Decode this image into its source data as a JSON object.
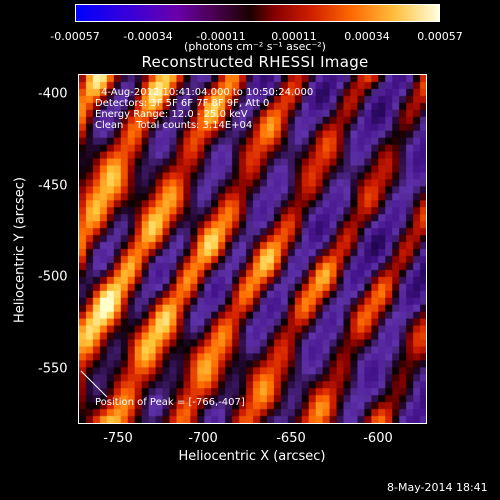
{
  "colorbar": {
    "ticks": [
      "-0.00057",
      "-0.00034",
      "-0.00011",
      "0.00011",
      "0.00034",
      "0.00057"
    ],
    "unit_label": "(photons cm⁻² s⁻¹ asec⁻²)",
    "colormap_colors": [
      "#0000ff",
      "#6a00a8",
      "#1a0000",
      "#d02000",
      "#ff6a00",
      "#ffffe0"
    ]
  },
  "chart_data": {
    "type": "heatmap",
    "title": "Reconstructed RHESSI Image",
    "xlabel": "Heliocentric X (arcsec)",
    "ylabel": "Heliocentric Y (arcsec)",
    "xlim": [
      -773,
      -578
    ],
    "ylim": [
      -580,
      -388
    ],
    "xticks": [
      "-750",
      "-700",
      "-650",
      "-600"
    ],
    "yticks": [
      "-400",
      "-450",
      "-500",
      "-550"
    ],
    "value_range": [
      -0.00057,
      0.00057
    ],
    "peak_position": [
      -766,
      -407
    ]
  },
  "annotations": {
    "time_range": "4-Aug-2012 10:41:04.000 to 10:50:24.000",
    "detectors": "Detectors: 3F 5F 6F 7F 8F 9F, Att 0",
    "energy": "Energy Range: 12.0 - 25.0 keV",
    "clean": "Clean    Total counts: 3.14E+04",
    "peak": "Position of Peak = [-766,-407]"
  },
  "footer": "8-May-2014 18:41"
}
